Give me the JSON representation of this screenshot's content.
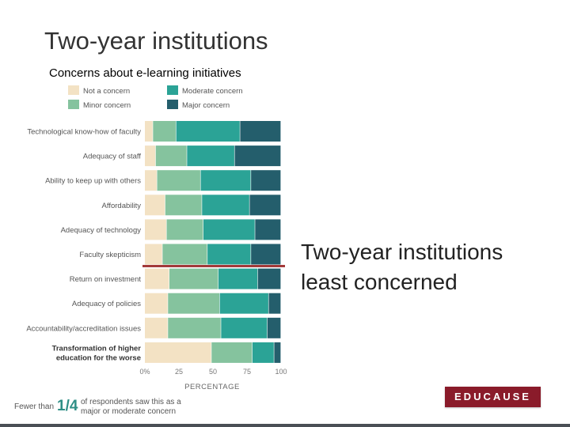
{
  "slide": {
    "title": "Two-year institutions",
    "callout_line1": "Two-year institutions",
    "callout_line2": "least concerned"
  },
  "footnote": {
    "prefix": "Fewer than",
    "fraction": "1/4",
    "line1": "of respondents saw this as a",
    "line2": "major or moderate concern"
  },
  "logo": {
    "text": "EDUCAUSE"
  },
  "colors": {
    "not": "#f3e2c4",
    "minor": "#85c39e",
    "moderate": "#2ba396",
    "major": "#245e6c",
    "highlight": "#a33a3a",
    "logo": "#8a1b2a"
  },
  "chart_data": {
    "type": "bar",
    "orientation": "horizontal",
    "stacked": true,
    "title": "Concerns about e-learning initiatives",
    "xlabel": "PERCENTAGE",
    "ylabel": "",
    "xlim": [
      0,
      100
    ],
    "xticks": [
      "0%",
      "25",
      "50",
      "75",
      "100"
    ],
    "legend_position": "top",
    "categories": [
      "Technological know-how of faculty",
      "Adequacy of staff",
      "Ability to keep up with others",
      "Affordability",
      "Adequacy of technology",
      "Faculty skepticism",
      "Return on investment",
      "Adequacy of policies",
      "Accountability/accreditation issues",
      "Transformation of higher education for the worse"
    ],
    "bold_categories": [
      "Transformation of higher education for the worse"
    ],
    "highlighted_category": "Faculty skepticism",
    "series": [
      {
        "name": "Not a concern",
        "color": "#f3e2c4",
        "values": [
          6,
          8,
          9,
          15,
          16,
          13,
          18,
          17,
          17,
          49
        ]
      },
      {
        "name": "Minor concern",
        "color": "#85c39e",
        "values": [
          17,
          23,
          32,
          27,
          27,
          33,
          36,
          38,
          39,
          30
        ]
      },
      {
        "name": "Moderate concern",
        "color": "#2ba396",
        "values": [
          47,
          35,
          37,
          35,
          38,
          32,
          29,
          36,
          34,
          16
        ]
      },
      {
        "name": "Major concern",
        "color": "#245e6c",
        "values": [
          30,
          34,
          22,
          23,
          19,
          22,
          17,
          9,
          10,
          5
        ]
      }
    ]
  }
}
